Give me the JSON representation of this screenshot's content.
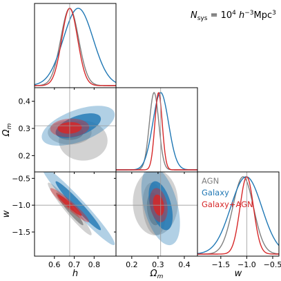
{
  "figure": {
    "annotation": "N_sys = 10^4 h^-3 Mpc^3",
    "annotation_parts": {
      "n": "N",
      "n_sub": "sys",
      "eq": " = 10",
      "exp1": "4",
      "h": " h",
      "exp2": "−3",
      "unit": "Mpc",
      "exp3": "3"
    }
  },
  "chart_data": {
    "type": "corner",
    "parameters": [
      {
        "key": "h",
        "label": "h",
        "range": [
          0.5,
          0.91
        ],
        "ticks": [
          0.6,
          0.7,
          0.8
        ],
        "tick_labels": [
          "0.6",
          "0.7",
          "0.8"
        ],
        "fiducial": 0.677
      },
      {
        "key": "om",
        "label": "Ωm",
        "range": [
          0.14,
          0.45
        ],
        "ticks": [
          0.2,
          0.3,
          0.4
        ],
        "tick_labels": [
          "0.2",
          "0.3",
          "0.4"
        ],
        "fiducial": 0.31
      },
      {
        "key": "w",
        "label": "w",
        "range": [
          -1.95,
          -0.38
        ],
        "ticks": [
          -1.5,
          -1.0,
          -0.5
        ],
        "tick_labels": [
          "−1.5",
          "−1.0",
          "−0.5"
        ],
        "fiducial": -1.0
      }
    ],
    "legend": {
      "placement": "lower-right panel area",
      "entries": [
        "AGN",
        "Galaxy",
        "Galaxy+AGN"
      ]
    },
    "series": [
      {
        "name": "AGN",
        "color": "#7f7f7f",
        "mean": {
          "h": 0.677,
          "om": 0.285,
          "w": -1.07
        },
        "sd": {
          "h": 0.045,
          "om": 0.018,
          "w": 0.2
        },
        "corr": {
          "h_om": 0.0,
          "h_w": -0.96,
          "om_w": -0.2
        },
        "secondary": {
          "h_om": {
            "h": 0.745,
            "om": 0.255,
            "sd_h": 0.05,
            "sd_om": 0.03
          },
          "om_w": {
            "om": 0.29,
            "w": -0.95,
            "sd_om": 0.035,
            "sd_w": 0.25
          }
        }
      },
      {
        "name": "Galaxy",
        "color": "#1f77b4",
        "mean": {
          "h": 0.72,
          "om": 0.31,
          "w": -1.01
        },
        "sd": {
          "h": 0.075,
          "om": 0.03,
          "w": 0.3
        },
        "corr": {
          "h_om": 0.55,
          "h_w": -0.97,
          "om_w": -0.45
        },
        "secondary": null
      },
      {
        "name": "Galaxy+AGN",
        "color": "#d62728",
        "mean": {
          "h": 0.677,
          "om": 0.302,
          "w": -1.0
        },
        "sd": {
          "h": 0.04,
          "om": 0.014,
          "w": 0.13
        },
        "corr": {
          "h_om": 0.1,
          "h_w": -0.95,
          "om_w": -0.25
        },
        "secondary": null
      }
    ]
  }
}
